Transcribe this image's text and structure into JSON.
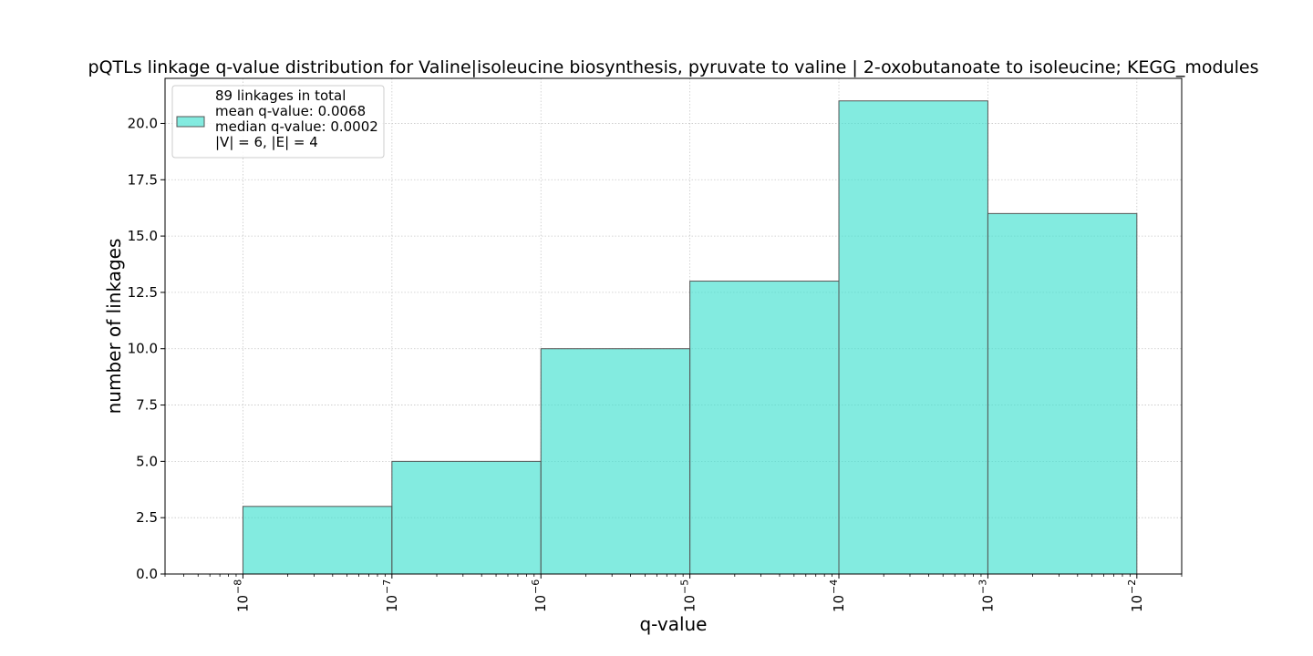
{
  "chart_data": {
    "type": "bar",
    "title": "pQTLs linkage q-value distribution for Valine|isoleucine biosynthesis, pyruvate to valine | 2-oxobutanoate to isoleucine; KEGG_modules",
    "xlabel": "q-value",
    "ylabel": "number of linkages",
    "x_scale": "log",
    "xlim": [
      3e-09,
      0.02
    ],
    "ylim": [
      0,
      22
    ],
    "grid": true,
    "bins": [
      {
        "from": 1e-08,
        "to": 1e-07,
        "value": 3
      },
      {
        "from": 1e-07,
        "to": 1e-06,
        "value": 5
      },
      {
        "from": 1e-06,
        "to": 1e-05,
        "value": 10
      },
      {
        "from": 1e-05,
        "to": 0.0001,
        "value": 13
      },
      {
        "from": 0.0001,
        "to": 0.001,
        "value": 21
      },
      {
        "from": 0.001,
        "to": 0.01,
        "value": 16
      }
    ],
    "x_ticks": [
      {
        "value": 1e-08,
        "base": "10",
        "exp": "−8"
      },
      {
        "value": 1e-07,
        "base": "10",
        "exp": "−7"
      },
      {
        "value": 1e-06,
        "base": "10",
        "exp": "−6"
      },
      {
        "value": 1e-05,
        "base": "10",
        "exp": "−5"
      },
      {
        "value": 0.0001,
        "base": "10",
        "exp": "−4"
      },
      {
        "value": 0.001,
        "base": "10",
        "exp": "−3"
      },
      {
        "value": 0.01,
        "base": "10",
        "exp": "−2"
      }
    ],
    "y_ticks": [
      {
        "value": 0,
        "label": "0.0"
      },
      {
        "value": 2.5,
        "label": "2.5"
      },
      {
        "value": 5,
        "label": "5.0"
      },
      {
        "value": 7.5,
        "label": "7.5"
      },
      {
        "value": 10,
        "label": "10.0"
      },
      {
        "value": 12.5,
        "label": "12.5"
      },
      {
        "value": 15,
        "label": "15.0"
      },
      {
        "value": 17.5,
        "label": "17.5"
      },
      {
        "value": 20,
        "label": "20.0"
      }
    ],
    "legend": {
      "placement": "top-left",
      "lines": [
        "89 linkages in total",
        "mean q-value: 0.0068",
        "median q-value: 0.0002",
        "|V| = 6, |E| = 4"
      ]
    },
    "colors": {
      "bar_fill": "#40e0d0",
      "bar_opacity": 0.65,
      "bar_edge": "#555555",
      "grid": "#c8c8c8",
      "axis": "#000000"
    }
  }
}
